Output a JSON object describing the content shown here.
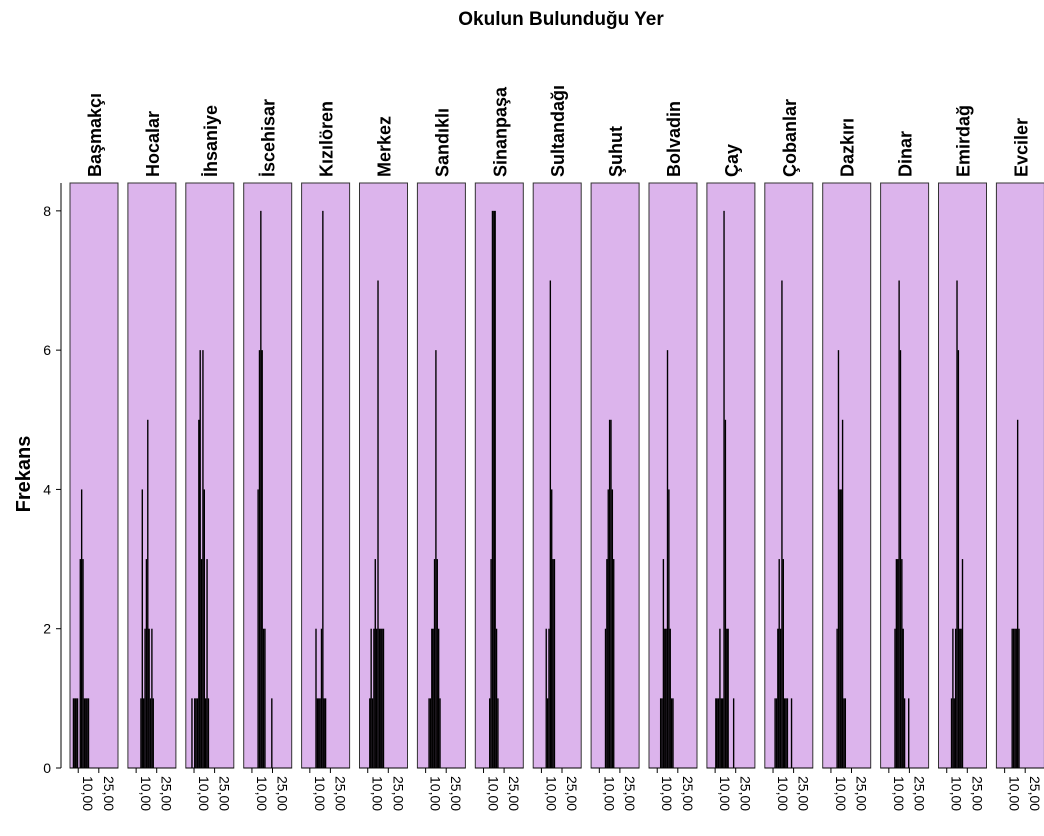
{
  "chart_data": {
    "type": "histogram",
    "title": "Okulun Bulunduğu Yer",
    "ylabel": "Frekans",
    "xlabel": "",
    "ylim": [
      0,
      8.4
    ],
    "yticks": [
      0,
      2,
      4,
      6,
      8
    ],
    "xlim": [
      4,
      39
    ],
    "xticks": [
      10,
      25
    ],
    "xtick_labels": [
      "10,00",
      "25,00"
    ],
    "panel_fill": "#dcb4ec",
    "bar_fill": "#000000",
    "grid": false,
    "panels": [
      {
        "label": "Başmakçı",
        "bins": [
          [
            6,
            1
          ],
          [
            7,
            1
          ],
          [
            8,
            1
          ],
          [
            9,
            1
          ],
          [
            11,
            3
          ],
          [
            12,
            4
          ],
          [
            13,
            3
          ],
          [
            14,
            1
          ],
          [
            15,
            1
          ],
          [
            16,
            1
          ],
          [
            17,
            1
          ]
        ]
      },
      {
        "label": "Hocalar",
        "bins": [
          [
            13,
            1
          ],
          [
            14,
            4
          ],
          [
            15,
            1
          ],
          [
            16,
            2
          ],
          [
            17,
            3
          ],
          [
            18,
            5
          ],
          [
            19,
            2
          ],
          [
            20,
            1
          ],
          [
            21,
            2
          ],
          [
            22,
            1
          ]
        ]
      },
      {
        "label": "İhsaniye",
        "bins": [
          [
            8,
            1
          ],
          [
            10,
            1
          ],
          [
            11,
            1
          ],
          [
            12,
            1
          ],
          [
            13,
            5
          ],
          [
            14,
            6
          ],
          [
            15,
            3
          ],
          [
            16,
            6
          ],
          [
            17,
            4
          ],
          [
            18,
            1
          ],
          [
            19,
            3
          ],
          [
            20,
            1
          ]
        ]
      },
      {
        "label": "İscehisar",
        "bins": [
          [
            14,
            4
          ],
          [
            15,
            6
          ],
          [
            16,
            8
          ],
          [
            17,
            6
          ],
          [
            18,
            2
          ],
          [
            19,
            2
          ],
          [
            24,
            1
          ]
        ]
      },
      {
        "label": "Kızılören",
        "bins": [
          [
            14,
            2
          ],
          [
            15,
            1
          ],
          [
            16,
            1
          ],
          [
            17,
            1
          ],
          [
            18,
            2
          ],
          [
            19,
            8
          ],
          [
            20,
            1
          ],
          [
            21,
            1
          ]
        ]
      },
      {
        "label": "Merkez",
        "bins": [
          [
            11,
            1
          ],
          [
            12,
            2
          ],
          [
            13,
            1
          ],
          [
            14,
            2
          ],
          [
            15,
            3
          ],
          [
            16,
            2
          ],
          [
            17,
            7
          ],
          [
            18,
            2
          ],
          [
            19,
            2
          ],
          [
            20,
            2
          ],
          [
            21,
            2
          ]
        ]
      },
      {
        "label": "Sandıklı",
        "bins": [
          [
            12,
            1
          ],
          [
            13,
            1
          ],
          [
            14,
            2
          ],
          [
            15,
            2
          ],
          [
            16,
            3
          ],
          [
            17,
            6
          ],
          [
            18,
            3
          ],
          [
            19,
            2
          ],
          [
            20,
            1
          ]
        ]
      },
      {
        "label": "Sinanpaşa",
        "bins": [
          [
            14,
            1
          ],
          [
            15,
            3
          ],
          [
            16,
            8
          ],
          [
            17,
            8
          ],
          [
            18,
            8
          ],
          [
            19,
            2
          ],
          [
            20,
            1
          ]
        ]
      },
      {
        "label": "Sultandağı",
        "bins": [
          [
            13,
            2
          ],
          [
            14,
            1
          ],
          [
            15,
            2
          ],
          [
            16,
            7
          ],
          [
            17,
            4
          ],
          [
            18,
            3
          ],
          [
            19,
            3
          ]
        ]
      },
      {
        "label": "Şuhut",
        "bins": [
          [
            14,
            2
          ],
          [
            15,
            3
          ],
          [
            16,
            4
          ],
          [
            17,
            5
          ],
          [
            18,
            5
          ],
          [
            19,
            4
          ],
          [
            20,
            3
          ]
        ]
      },
      {
        "label": "Bolvadin",
        "bins": [
          [
            12,
            1
          ],
          [
            13,
            1
          ],
          [
            14,
            3
          ],
          [
            15,
            2
          ],
          [
            16,
            2
          ],
          [
            17,
            6
          ],
          [
            18,
            4
          ],
          [
            19,
            2
          ],
          [
            20,
            1
          ],
          [
            21,
            1
          ]
        ]
      },
      {
        "label": "Çay",
        "bins": [
          [
            10,
            1
          ],
          [
            11,
            1
          ],
          [
            12,
            1
          ],
          [
            13,
            2
          ],
          [
            14,
            1
          ],
          [
            15,
            1
          ],
          [
            16,
            8
          ],
          [
            17,
            5
          ],
          [
            18,
            2
          ],
          [
            19,
            2
          ],
          [
            23,
            1
          ]
        ]
      },
      {
        "label": "Çobanlar",
        "bins": [
          [
            11,
            1
          ],
          [
            12,
            1
          ],
          [
            13,
            2
          ],
          [
            14,
            3
          ],
          [
            15,
            2
          ],
          [
            16,
            7
          ],
          [
            17,
            3
          ],
          [
            18,
            1
          ],
          [
            19,
            1
          ],
          [
            20,
            1
          ],
          [
            23,
            1
          ]
        ]
      },
      {
        "label": "Dazkırı",
        "bins": [
          [
            14,
            2
          ],
          [
            15,
            6
          ],
          [
            16,
            4
          ],
          [
            17,
            4
          ],
          [
            18,
            5
          ],
          [
            19,
            1
          ],
          [
            20,
            1
          ]
        ]
      },
      {
        "label": "Dinar",
        "bins": [
          [
            14,
            2
          ],
          [
            15,
            3
          ],
          [
            16,
            3
          ],
          [
            17,
            7
          ],
          [
            18,
            6
          ],
          [
            19,
            3
          ],
          [
            20,
            2
          ],
          [
            21,
            1
          ],
          [
            24,
            1
          ]
        ]
      },
      {
        "label": "Emirdağ",
        "bins": [
          [
            13,
            1
          ],
          [
            14,
            2
          ],
          [
            15,
            1
          ],
          [
            16,
            2
          ],
          [
            17,
            7
          ],
          [
            18,
            6
          ],
          [
            19,
            2
          ],
          [
            20,
            2
          ],
          [
            21,
            3
          ]
        ]
      },
      {
        "label": "Evciler",
        "bins": [
          [
            15,
            2
          ],
          [
            16,
            2
          ],
          [
            17,
            2
          ],
          [
            18,
            2
          ],
          [
            19,
            5
          ],
          [
            20,
            2
          ]
        ]
      }
    ]
  }
}
